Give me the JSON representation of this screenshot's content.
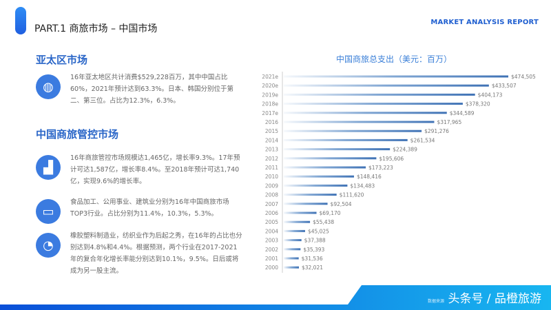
{
  "header": {
    "title": "PART.1 商旅市场 – 中国市场",
    "report": "MARKET ANALYSIS REPORT"
  },
  "left": {
    "section1": {
      "heading": "亚太区市场",
      "items": [
        {
          "icon": "globe-icon",
          "text": "16年亚太地区共计消费$529,228百万，其中中国占比60%，2021年预计达到63.3%。日本、韩国分别位于第二、第三位。占比为12.3%，6.3%。"
        }
      ]
    },
    "section2": {
      "heading": "中国商旅管控市场",
      "items": [
        {
          "icon": "bar-chart-icon",
          "text": "16年商旅管控市场规模达1,465亿，增长率9.3%。17年预计可达1,587亿，增长率8.4%。至2018年预计可达1,740亿，实现9.6%的增长率。"
        },
        {
          "icon": "presentation-icon",
          "text": "食品加工、公用事业、建筑业分别为16年中国商旅市场TOP3行业。占比分别为11.4%，10.3%，5.3%。"
        },
        {
          "icon": "pie-chart-icon",
          "text": "橡胶塑料制造业，纺织业作为后起之秀，在16年的占比也分别达到4.8%和4.4%。根据预测，两个行业在2017-2021年的复合年化增长率能分别达到10.1%，9.5%。日后或将成为另一股主流。"
        }
      ]
    }
  },
  "chart_data": {
    "type": "bar",
    "orientation": "horizontal",
    "title": "中国商旅总支出（美元：百万）",
    "categories": [
      "2021e",
      "2020e",
      "2019e",
      "2018e",
      "2017e",
      "2016",
      "2015",
      "2014",
      "2013",
      "2012",
      "2011",
      "2010",
      "2009",
      "2008",
      "2007",
      "2006",
      "2005",
      "2004",
      "2003",
      "2002",
      "2001",
      "2000"
    ],
    "values": [
      474505,
      433507,
      404173,
      378320,
      344589,
      317965,
      291276,
      261534,
      224389,
      195606,
      173223,
      148416,
      134483,
      111620,
      92504,
      69170,
      55438,
      45025,
      37388,
      35393,
      31536,
      32021
    ],
    "labels": [
      "$474,505",
      "$433,507",
      "$404,173",
      "$378,320",
      "$344,589",
      "$317,965",
      "$291,276",
      "$261,534",
      "$224,389",
      "$195,606",
      "$173,223",
      "$148,416",
      "$134,483",
      "$111,620",
      "$92,504",
      "$69,170",
      "$55,438",
      "$45,025",
      "$37,388",
      "$35,393",
      "$31,536",
      "$32,021"
    ],
    "color": "#4a80c0"
  },
  "watermark": {
    "source": "数据来源",
    "text": "头条号 / 品橙旅游"
  }
}
